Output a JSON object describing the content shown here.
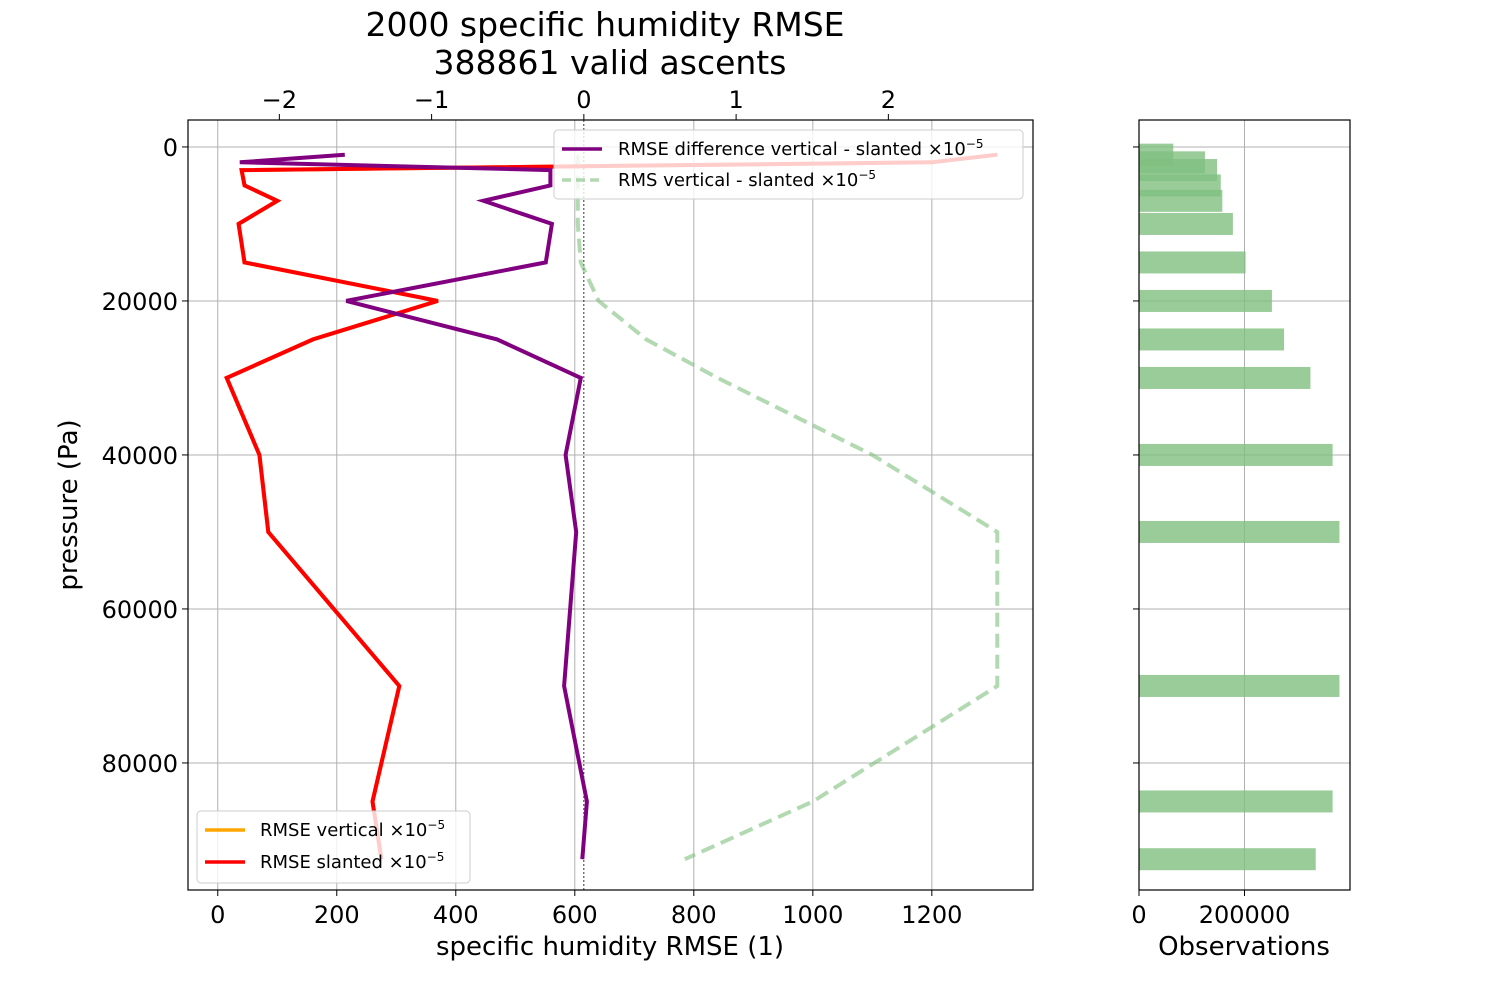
{
  "chart_data": [
    {
      "type": "line",
      "title": "2000 specific humidity RMSE",
      "subtitle": "388861 valid ascents",
      "xlabel": "specific humidity RMSE (1)",
      "ylabel": "pressure (Pa)",
      "xlim": [
        -50,
        1370
      ],
      "ylim": [
        96500,
        -3500
      ],
      "y_inverted": true,
      "x_ticks": [
        "0",
        "200",
        "400",
        "600",
        "800",
        "1000",
        "1200"
      ],
      "x_tick_values": [
        0,
        200,
        400,
        600,
        800,
        1000,
        1200
      ],
      "y_ticks": [
        "0",
        "20000",
        "40000",
        "60000",
        "80000"
      ],
      "y_tick_values": [
        0,
        20000,
        40000,
        60000,
        80000
      ],
      "grid": true,
      "secondary_x": {
        "xlim": [
          -2.6,
          2.95
        ],
        "ticks": [
          "−2",
          "−1",
          "0",
          "1",
          "2"
        ],
        "tick_values": [
          -2,
          -1,
          0,
          1,
          2
        ]
      },
      "series": [
        {
          "name": "RMSE vertical ×10⁻⁵",
          "axis": "bottom",
          "color": "#FFA500",
          "style": "solid",
          "x": [
            1310,
            1200,
            40,
            45,
            100,
            35,
            45,
            370,
            160,
            15,
            70,
            85,
            305,
            260,
            275
          ],
          "y": [
            1000,
            2000,
            3000,
            5000,
            7000,
            10000,
            15000,
            20000,
            25000,
            30000,
            40000,
            50000,
            70000,
            85000,
            92500
          ]
        },
        {
          "name": "RMSE slanted ×10⁻⁵",
          "axis": "bottom",
          "color": "#FF0000",
          "style": "solid",
          "x": [
            1310,
            1200,
            40,
            45,
            100,
            35,
            45,
            370,
            160,
            15,
            70,
            85,
            305,
            260,
            275
          ],
          "y": [
            1000,
            2000,
            3000,
            5000,
            7000,
            10000,
            15000,
            20000,
            25000,
            30000,
            40000,
            50000,
            70000,
            85000,
            92500
          ]
        },
        {
          "name": "RMSE difference vertical - slanted ×10⁻⁵",
          "axis": "top",
          "color": "#800080",
          "style": "solid",
          "x": [
            -1.57,
            -2.26,
            -0.22,
            -0.22,
            -0.66,
            -0.21,
            -0.25,
            -1.56,
            -0.57,
            -0.02,
            -0.12,
            -0.05,
            -0.13,
            0.02,
            -0.01
          ],
          "y": [
            1000,
            2000,
            3000,
            5000,
            7000,
            10000,
            15000,
            20000,
            25000,
            30000,
            40000,
            50000,
            70000,
            85000,
            92500
          ]
        },
        {
          "name": "RMS vertical - slanted ×10⁻⁵",
          "axis": "bottom",
          "color": "#7FBF7F",
          "style": "dashed",
          "x": [
            605,
            605,
            605,
            605,
            605,
            605,
            610,
            640,
            720,
            840,
            1100,
            1310,
            1310,
            1000,
            785
          ],
          "y": [
            1000,
            2000,
            3000,
            5000,
            7000,
            10000,
            15000,
            20000,
            25000,
            30000,
            40000,
            50000,
            70000,
            85000,
            92500
          ]
        }
      ],
      "legends": [
        {
          "position": "lower-left",
          "entries": [
            "RMSE vertical ×10⁻⁵",
            "RMSE slanted ×10⁻⁵"
          ]
        },
        {
          "position": "upper-right",
          "entries": [
            "RMSE difference vertical - slanted ×10⁻⁵",
            "RMS vertical - slanted ×10⁻⁵"
          ]
        }
      ],
      "legend_labels": {
        "vertical": "RMSE vertical ×10",
        "slanted": "RMSE slanted ×10",
        "difference": "RMSE difference vertical - slanted ×10",
        "rms": "RMS vertical - slanted ×10",
        "exponent": "−5"
      }
    },
    {
      "type": "bar",
      "orientation": "horizontal",
      "xlabel": "Observations",
      "xlim": [
        0,
        400000
      ],
      "x_ticks": [
        "0",
        "200000"
      ],
      "x_tick_values": [
        0,
        200000
      ],
      "grid": true,
      "color": "#7FBF7F",
      "bars": [
        {
          "pressure": 1000,
          "value": 65000
        },
        {
          "pressure": 2000,
          "value": 125000
        },
        {
          "pressure": 3000,
          "value": 148000
        },
        {
          "pressure": 5000,
          "value": 155000
        },
        {
          "pressure": 7000,
          "value": 158000
        },
        {
          "pressure": 10000,
          "value": 178000
        },
        {
          "pressure": 15000,
          "value": 202000
        },
        {
          "pressure": 20000,
          "value": 252000
        },
        {
          "pressure": 25000,
          "value": 275000
        },
        {
          "pressure": 30000,
          "value": 325000
        },
        {
          "pressure": 40000,
          "value": 367000
        },
        {
          "pressure": 50000,
          "value": 380000
        },
        {
          "pressure": 70000,
          "value": 380000
        },
        {
          "pressure": 85000,
          "value": 367000
        },
        {
          "pressure": 92500,
          "value": 335000
        }
      ]
    }
  ]
}
